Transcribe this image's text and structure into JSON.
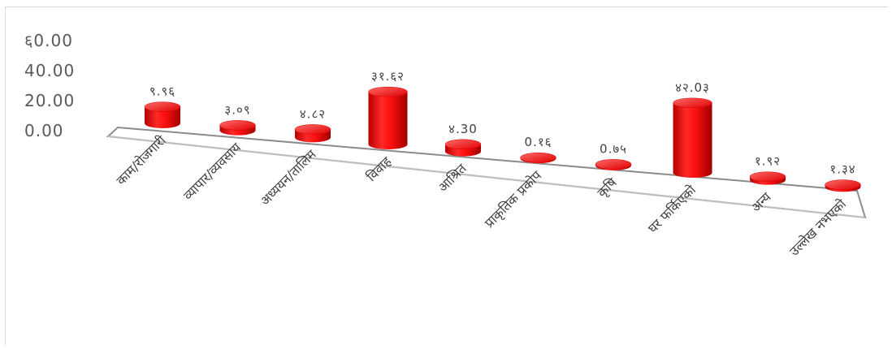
{
  "chart_data": {
    "type": "bar",
    "style": "3d-cylinder",
    "title": "",
    "xlabel": "",
    "ylabel": "",
    "ylim": [
      0,
      60
    ],
    "yticks": [
      {
        "value": 0,
        "label": "0.00"
      },
      {
        "value": 20,
        "label": "20.00"
      },
      {
        "value": 40,
        "label": "40.00"
      },
      {
        "value": 60,
        "label": "६0.00"
      }
    ],
    "categories": [
      "काम/रोजगारी",
      "व्यापार/व्यवसाय",
      "अध्ययन/तालिम",
      "विवाह",
      "आश्रित",
      "प्राकृतिक प्रकोप",
      "कृषि",
      "घर फर्किएको",
      "अन्य",
      "उल्लेख नभएको"
    ],
    "values": [
      9.96,
      3.09,
      4.82,
      31.62,
      4.3,
      0.16,
      0.75,
      42.03,
      1.92,
      1.34
    ],
    "value_labels": [
      "९.९६",
      "३.०९",
      "४.८२",
      "३१.६२",
      "४.30",
      "0.१६",
      "0.७५",
      "४२.0३",
      "१.९२",
      "१.३४"
    ],
    "grid": false,
    "legend": "none",
    "colors": {
      "bar": "#ff0000",
      "bar_dark": "#c00000",
      "bar_light": "#ff4d4d",
      "floor_edge": "#8c8c8c"
    }
  }
}
